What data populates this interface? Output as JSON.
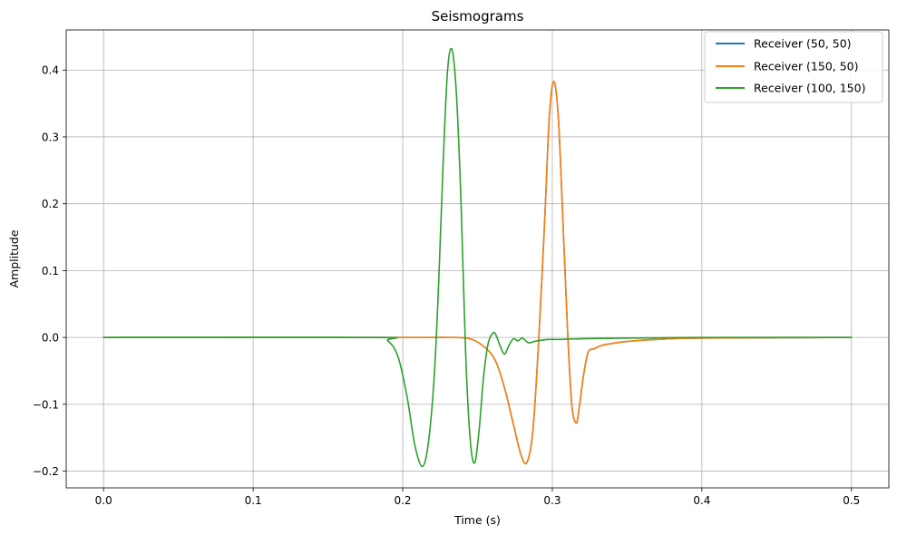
{
  "chart_data": {
    "type": "line",
    "title": "Seismograms",
    "xlabel": "Time (s)",
    "ylabel": "Amplitude",
    "xlim": [
      -0.025,
      0.525
    ],
    "ylim": [
      -0.225,
      0.46
    ],
    "xticks": [
      0.0,
      0.1,
      0.2,
      0.3,
      0.4,
      0.5
    ],
    "xtick_labels": [
      "0.0",
      "0.1",
      "0.2",
      "0.3",
      "0.4",
      "0.5"
    ],
    "yticks": [
      -0.2,
      -0.1,
      0.0,
      0.1,
      0.2,
      0.3,
      0.4
    ],
    "ytick_labels": [
      "−0.2",
      "−0.1",
      "0.0",
      "0.1",
      "0.2",
      "0.3",
      "0.4"
    ],
    "grid": true,
    "legend_position": "top-right",
    "series": [
      {
        "name": "Receiver (50, 50)",
        "color": "#1f77b4",
        "x": [
          0.0,
          0.2,
          0.23,
          0.245,
          0.255,
          0.262,
          0.268,
          0.274,
          0.279,
          0.283,
          0.287,
          0.291,
          0.295,
          0.298,
          0.301,
          0.304,
          0.307,
          0.31,
          0.313,
          0.316,
          0.318,
          0.321,
          0.324,
          0.328,
          0.333,
          0.34,
          0.35,
          0.37,
          0.4,
          0.5
        ],
        "y": [
          0.0,
          0.0,
          0.0,
          -0.002,
          -0.015,
          -0.035,
          -0.075,
          -0.13,
          -0.175,
          -0.187,
          -0.14,
          0.0,
          0.18,
          0.33,
          0.383,
          0.33,
          0.18,
          0.02,
          -0.1,
          -0.128,
          -0.105,
          -0.055,
          -0.022,
          -0.017,
          -0.012,
          -0.009,
          -0.006,
          -0.003,
          -0.001,
          0.0
        ]
      },
      {
        "name": "Receiver (150, 50)",
        "color": "#ff7f0e",
        "x": [
          0.0,
          0.2,
          0.23,
          0.245,
          0.255,
          0.262,
          0.268,
          0.274,
          0.279,
          0.283,
          0.287,
          0.291,
          0.295,
          0.298,
          0.301,
          0.304,
          0.307,
          0.31,
          0.313,
          0.316,
          0.318,
          0.321,
          0.324,
          0.328,
          0.333,
          0.34,
          0.35,
          0.37,
          0.4,
          0.5
        ],
        "y": [
          0.0,
          0.0,
          0.0,
          -0.002,
          -0.015,
          -0.035,
          -0.075,
          -0.13,
          -0.175,
          -0.187,
          -0.14,
          0.0,
          0.18,
          0.33,
          0.383,
          0.33,
          0.18,
          0.02,
          -0.1,
          -0.128,
          -0.105,
          -0.055,
          -0.022,
          -0.017,
          -0.012,
          -0.009,
          -0.006,
          -0.003,
          -0.001,
          0.0
        ]
      },
      {
        "name": "Receiver (100, 150)",
        "color": "#2ca02c",
        "x": [
          0.0,
          0.18,
          0.19,
          0.197,
          0.203,
          0.208,
          0.213,
          0.217,
          0.221,
          0.224,
          0.227,
          0.23,
          0.233,
          0.236,
          0.239,
          0.242,
          0.245,
          0.248,
          0.251,
          0.254,
          0.257,
          0.26,
          0.262,
          0.265,
          0.268,
          0.271,
          0.274,
          0.277,
          0.28,
          0.284,
          0.288,
          0.293,
          0.298,
          0.305,
          0.32,
          0.35,
          0.4,
          0.5
        ],
        "y": [
          0.0,
          0.0,
          -0.005,
          -0.03,
          -0.09,
          -0.16,
          -0.193,
          -0.16,
          -0.06,
          0.08,
          0.26,
          0.4,
          0.43,
          0.36,
          0.2,
          -0.02,
          -0.15,
          -0.188,
          -0.14,
          -0.06,
          -0.01,
          0.006,
          0.005,
          -0.012,
          -0.025,
          -0.012,
          -0.002,
          -0.005,
          -0.001,
          -0.008,
          -0.006,
          -0.004,
          -0.003,
          -0.003,
          -0.002,
          -0.001,
          0.0,
          0.0
        ]
      }
    ]
  }
}
